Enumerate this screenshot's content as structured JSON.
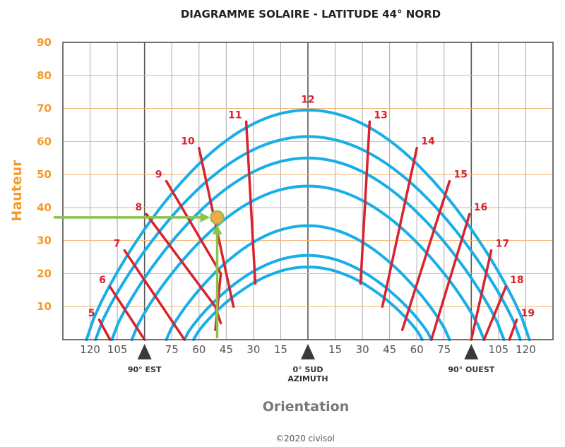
{
  "chart_data": {
    "type": "line",
    "title": "DIAGRAMME SOLAIRE - LATITUDE 44° NORD",
    "ylabel": "Hauteur",
    "xlabel": "Orientation",
    "ylim": [
      0,
      90
    ],
    "yticks": [
      10,
      20,
      30,
      40,
      50,
      60,
      70,
      80,
      90
    ],
    "xlim": [
      -135,
      135
    ],
    "xtick_values": [
      -120,
      -105,
      -75,
      -60,
      -45,
      -30,
      -15,
      15,
      30,
      45,
      60,
      75,
      105,
      120
    ],
    "xtick_labels": [
      "120",
      "105",
      "75",
      "60",
      "45",
      "30",
      "15",
      "15",
      "30",
      "45",
      "60",
      "75",
      "105",
      "120"
    ],
    "markers": [
      {
        "x": -90,
        "label": "90° EST"
      },
      {
        "x": 0,
        "label": "0° SUD",
        "label2": "AZIMUTH"
      },
      {
        "x": 90,
        "label": "90° OUEST"
      }
    ],
    "sun_paths": [
      {
        "max_altitude": 69.5,
        "half_width": 122
      },
      {
        "max_altitude": 61.5,
        "half_width": 117
      },
      {
        "max_altitude": 55,
        "half_width": 108
      },
      {
        "max_altitude": 46.5,
        "half_width": 97
      },
      {
        "max_altitude": 34.5,
        "half_width": 78
      },
      {
        "max_altitude": 25.5,
        "half_width": 68
      },
      {
        "max_altitude": 22,
        "half_width": 63
      }
    ],
    "hour_lines": [
      {
        "hour": "5",
        "points": [
          [
            -115,
            6
          ],
          [
            -109,
            0
          ]
        ]
      },
      {
        "hour": "6",
        "points": [
          [
            -109,
            16
          ],
          [
            -90,
            0
          ]
        ]
      },
      {
        "hour": "7",
        "points": [
          [
            -101,
            27
          ],
          [
            -68,
            0
          ]
        ]
      },
      {
        "hour": "8",
        "points": [
          [
            -89,
            38
          ],
          [
            -51,
            10
          ],
          [
            -48,
            5
          ]
        ]
      },
      {
        "hour": "9",
        "points": [
          [
            -78,
            48
          ],
          [
            -48,
            20
          ],
          [
            -51,
            3
          ]
        ]
      },
      {
        "hour": "10",
        "points": [
          [
            -60,
            58
          ],
          [
            -41,
            10
          ]
        ]
      },
      {
        "hour": "11",
        "points": [
          [
            -34,
            66
          ],
          [
            -29,
            17
          ]
        ]
      },
      {
        "hour": "13",
        "points": [
          [
            34,
            66
          ],
          [
            29,
            17
          ]
        ]
      },
      {
        "hour": "14",
        "points": [
          [
            60,
            58
          ],
          [
            41,
            10
          ]
        ]
      },
      {
        "hour": "15",
        "points": [
          [
            78,
            48
          ],
          [
            52,
            3
          ]
        ]
      },
      {
        "hour": "16",
        "points": [
          [
            89,
            38
          ],
          [
            68,
            0
          ]
        ]
      },
      {
        "hour": "17",
        "points": [
          [
            101,
            27
          ],
          [
            90,
            0
          ]
        ]
      },
      {
        "hour": "18",
        "points": [
          [
            109,
            16
          ],
          [
            97,
            0
          ]
        ]
      },
      {
        "hour": "19",
        "points": [
          [
            115,
            6
          ],
          [
            111,
            0
          ]
        ]
      }
    ],
    "hour_label_12": {
      "hour": "12",
      "x": 0,
      "y": 73
    },
    "example_point": {
      "x": -50,
      "y": 37
    },
    "colors": {
      "sun_path": "#18aee8",
      "hour_line": "#d8232f",
      "grid_horizontal": "#f4b26e",
      "grid_vertical": "#aaaaaa",
      "grid_major": "#555555",
      "arrow": "#8bc34a",
      "point_fill": "#f8a54b",
      "point_stroke": "#8bc34a",
      "axis_text": "#f39a2b",
      "marker": "#3a3a3a"
    }
  },
  "copyright": "©2020 civisol"
}
